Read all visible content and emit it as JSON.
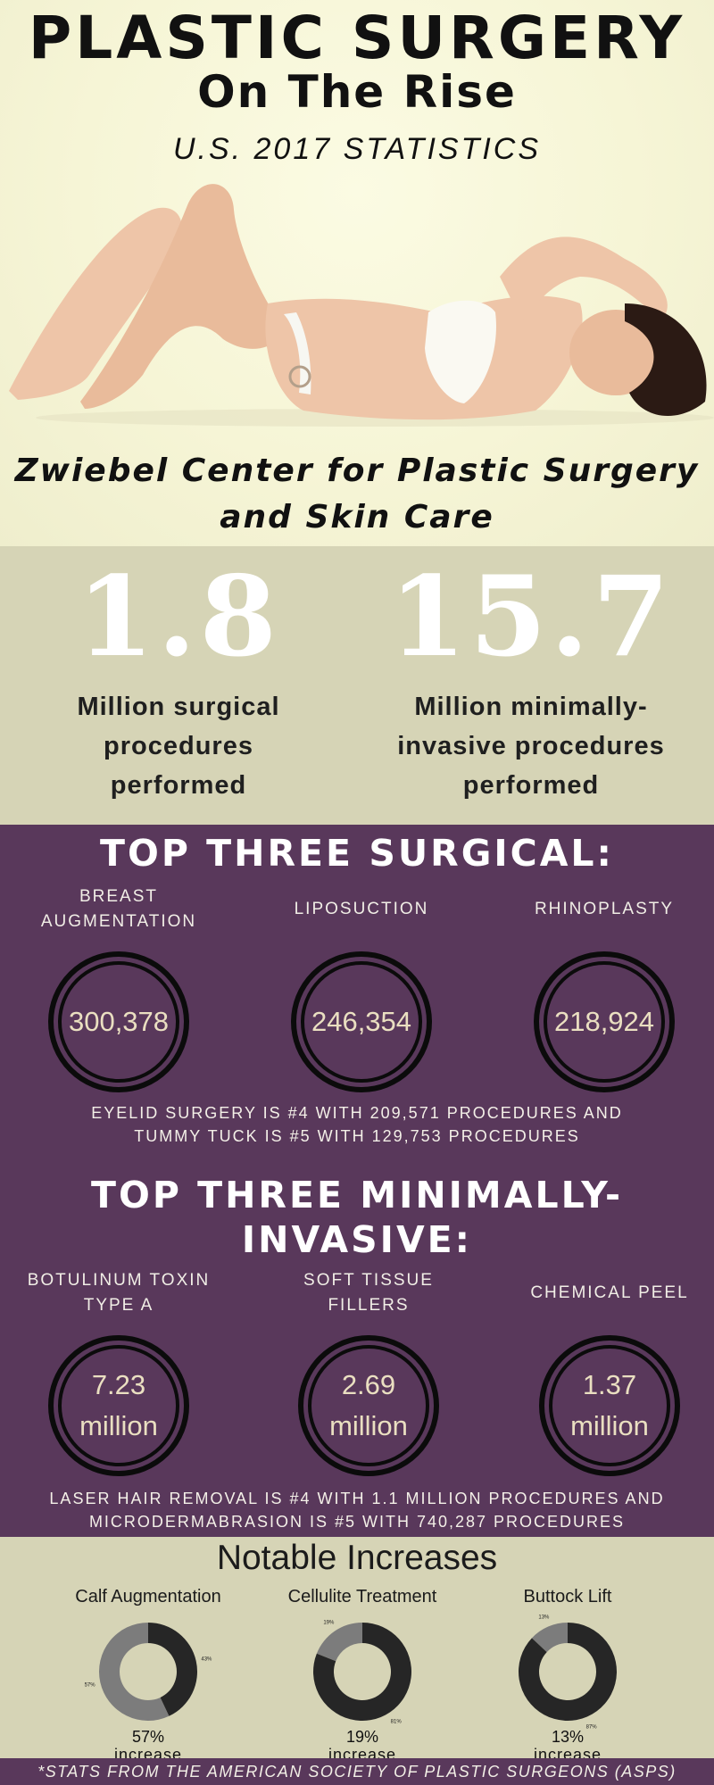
{
  "header": {
    "title_line1": "PLASTIC SURGERY",
    "title_line2": "On The Rise",
    "subtitle": "U.S. 2017 STATISTICS"
  },
  "clinic": {
    "line1": "Zwiebel Center for Plastic Surgery",
    "line2": "and Skin Care"
  },
  "stats": [
    {
      "number": "1.8",
      "desc_line1": "Million surgical",
      "desc_line2": "procedures",
      "desc_line3": "performed"
    },
    {
      "number": "15.7",
      "desc_line1": "Million minimally-",
      "desc_line2": "invasive procedures",
      "desc_line3": "performed"
    }
  ],
  "surgical": {
    "title": "TOP THREE SURGICAL:",
    "items": [
      {
        "label_line1": "BREAST",
        "label_line2": "AUGMENTATION",
        "value": "300,378"
      },
      {
        "label_line1": "LIPOSUCTION",
        "label_line2": "",
        "value": "246,354"
      },
      {
        "label_line1": "RHINOPLASTY",
        "label_line2": "",
        "value": "218,924"
      }
    ],
    "note_line1": "EYELID SURGERY IS #4 WITH 209,571 PROCEDURES AND",
    "note_line2": "TUMMY TUCK IS #5 WITH 129,753 PROCEDURES"
  },
  "minimally": {
    "title_line1": "TOP THREE MINIMALLY-",
    "title_line2": "INVASIVE:",
    "items": [
      {
        "label_line1": "BOTULINUM TOXIN",
        "label_line2": "TYPE A",
        "value_line1": "7.23",
        "value_line2": "million"
      },
      {
        "label_line1": "SOFT TISSUE",
        "label_line2": "FILLERS",
        "value_line1": "2.69",
        "value_line2": "million"
      },
      {
        "label_line1": "CHEMICAL PEEL",
        "label_line2": "",
        "value_line1": "1.37",
        "value_line2": "million"
      }
    ],
    "note_line1": "LASER HAIR REMOVAL IS #4 WITH 1.1 MILLION PROCEDURES AND",
    "note_line2": "MICRODERMABRASION IS #5 WITH 740,287 PROCEDURES"
  },
  "notable": {
    "title": "Notable Increases",
    "increase_word": "increase",
    "colors": {
      "increase": "#7c7c7c",
      "rest": "#262626"
    }
  },
  "chart_data": [
    {
      "type": "pie",
      "title": "Calf Augmentation",
      "labels": [
        "57%",
        "43%"
      ],
      "values": [
        57,
        43
      ],
      "caption": "57%"
    },
    {
      "type": "pie",
      "title": "Cellulite Treatment",
      "labels": [
        "19%",
        "81%"
      ],
      "values": [
        19,
        81
      ],
      "caption": "19%"
    },
    {
      "type": "pie",
      "title": "Buttock Lift",
      "labels": [
        "13%",
        "87%"
      ],
      "values": [
        13,
        87
      ],
      "caption": "13%"
    }
  ],
  "footer": {
    "text": "*STATS FROM THE AMERICAN SOCIETY OF PLASTIC SURGEONS (ASPS)"
  }
}
